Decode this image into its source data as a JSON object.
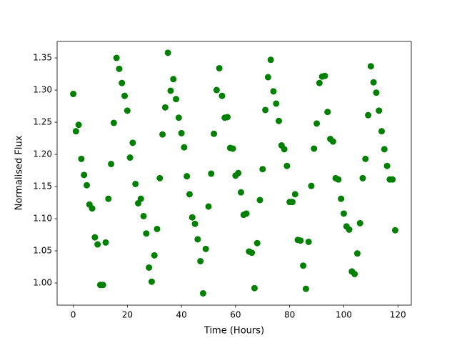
{
  "chart_data": {
    "type": "scatter",
    "x_label": "Time (Hours)",
    "y_label": "Normalised Flux",
    "color": "#008000",
    "grid": false,
    "xlim": [
      -5.95,
      124.95
    ],
    "ylim": [
      0.9656,
      1.3756
    ],
    "xticks": [
      0,
      20,
      40,
      60,
      80,
      100,
      120
    ],
    "yticks": [
      {
        "value": 1,
        "label": "1.00"
      },
      1.05,
      {
        "value": 1.1,
        "label": "1.10"
      },
      1.15,
      {
        "value": 1.2,
        "label": "1.20"
      },
      1.25,
      {
        "value": 1.3,
        "label": "1.30"
      },
      1.35
    ],
    "x": [
      0,
      1,
      2,
      3,
      4,
      5,
      6,
      7,
      8,
      9,
      10,
      11,
      12,
      13,
      14,
      15,
      16,
      17,
      18,
      19,
      20,
      21,
      22,
      23,
      24,
      25,
      26,
      27,
      28,
      29,
      30,
      31,
      32,
      33,
      34,
      35,
      36,
      37,
      38,
      39,
      40,
      41,
      42,
      43,
      44,
      45,
      46,
      47,
      48,
      49,
      50,
      51,
      52,
      53,
      54,
      55,
      56,
      57,
      58,
      59,
      60,
      61,
      62,
      63,
      64,
      65,
      66,
      67,
      68,
      69,
      70,
      71,
      72,
      73,
      74,
      75,
      76,
      77,
      78,
      79,
      80,
      81,
      82,
      83,
      84,
      85,
      86,
      87,
      88,
      89,
      90,
      91,
      92,
      93,
      94,
      95,
      96,
      97,
      98,
      99,
      100,
      101,
      102,
      103,
      104,
      105,
      106,
      107,
      108,
      109,
      110,
      111,
      112,
      113,
      114,
      115,
      116,
      117,
      118,
      119
    ],
    "values": [
      1.294,
      1.236,
      1.246,
      1.193,
      1.168,
      1.152,
      1.122,
      1.116,
      1.071,
      1.06,
      0.997,
      0.997,
      1.063,
      1.131,
      1.185,
      1.249,
      1.35,
      1.333,
      1.311,
      1.291,
      1.268,
      1.195,
      1.218,
      1.154,
      1.124,
      1.131,
      1.104,
      1.077,
      1.024,
      1.002,
      1.043,
      1.084,
      1.163,
      1.231,
      1.273,
      1.358,
      1.299,
      1.317,
      1.286,
      1.257,
      1.233,
      1.211,
      1.166,
      1.138,
      1.102,
      1.092,
      1.068,
      1.034,
      0.984,
      1.053,
      1.119,
      1.17,
      1.232,
      1.3,
      1.334,
      1.291,
      1.257,
      1.258,
      1.21,
      1.209,
      1.167,
      1.171,
      1.141,
      1.106,
      1.108,
      1.049,
      1.047,
      0.992,
      1.062,
      1.129,
      1.177,
      1.269,
      1.32,
      1.347,
      1.298,
      1.279,
      1.252,
      1.214,
      1.208,
      1.182,
      1.126,
      1.126,
      1.138,
      1.067,
      1.066,
      1.027,
      0.991,
      1.064,
      1.151,
      1.209,
      1.248,
      1.311,
      1.321,
      1.322,
      1.266,
      1.224,
      1.22,
      1.163,
      1.161,
      1.131,
      1.108,
      1.088,
      1.083,
      1.018,
      1.014,
      1.046,
      1.093,
      1.163,
      1.193,
      1.261,
      1.337,
      1.312,
      1.296,
      1.268,
      1.236,
      1.208,
      1.182,
      1.161,
      1.161,
      1.082
    ]
  }
}
